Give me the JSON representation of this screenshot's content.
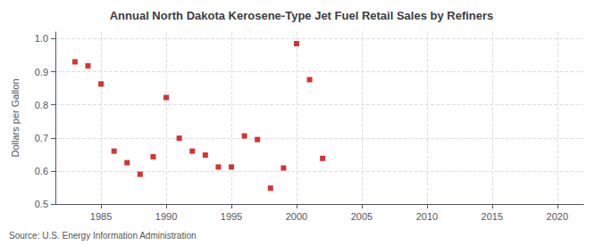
{
  "chart_data": {
    "type": "scatter",
    "title": "Annual North Dakota Kerosene-Type Jet Fuel Retail Sales by Refiners",
    "ylabel": "Dollars per Gallon",
    "annotation": "Source: U.S. Energy Information Administration",
    "x": [
      1983,
      1984,
      1985,
      1986,
      1987,
      1988,
      1989,
      1990,
      1991,
      1992,
      1993,
      1994,
      1995,
      1996,
      1997,
      1998,
      1999,
      2000,
      2001,
      2002
    ],
    "values": [
      0.93,
      0.918,
      0.863,
      0.66,
      0.625,
      0.59,
      0.643,
      0.822,
      0.699,
      0.66,
      0.648,
      0.612,
      0.612,
      0.706,
      0.695,
      0.548,
      0.609,
      0.985,
      0.876,
      0.638
    ],
    "color": "#cc0000",
    "marker": "square",
    "xlim": [
      1981.5,
      2022
    ],
    "ylim": [
      0.5,
      1.02
    ],
    "xticks": [
      1985,
      1990,
      1995,
      2000,
      2005,
      2010,
      2015,
      2020
    ],
    "yticks": [
      0.5,
      0.6,
      0.7,
      0.8,
      0.9,
      {
        "value": 1.0,
        "label": "1.0"
      }
    ],
    "grid": true
  }
}
